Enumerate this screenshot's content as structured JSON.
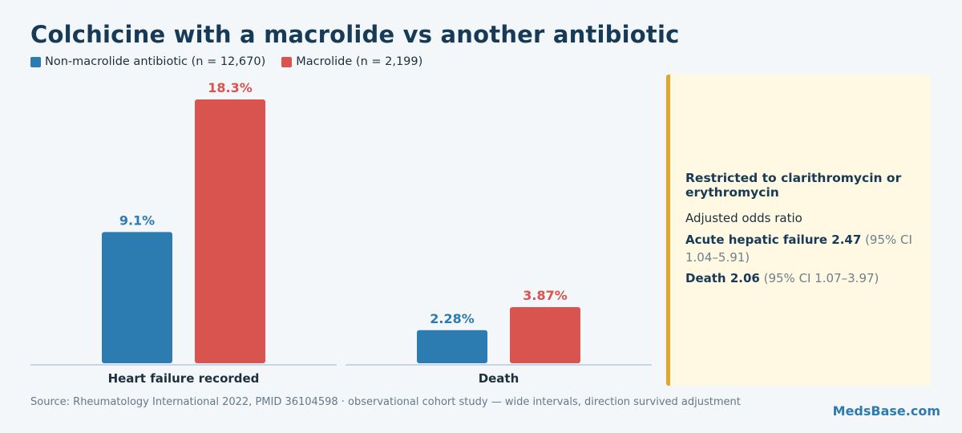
{
  "title": "Colchicine with a macrolide vs another antibiotic",
  "colors": {
    "series_0": "#2c7bb1",
    "series_1": "#d9534f",
    "accent": "#e4a52c"
  },
  "chart_data": {
    "type": "bar",
    "categories": [
      "Heart failure recorded",
      "Death"
    ],
    "series": [
      {
        "name": "Non-macrolide antibiotic (n = 12,670)",
        "values": [
          9.1,
          2.28
        ],
        "labels": [
          "9.1%",
          "2.28%"
        ]
      },
      {
        "name": "Macrolide (n = 2,199)",
        "values": [
          18.3,
          3.87
        ],
        "labels": [
          "18.3%",
          "3.87%"
        ]
      }
    ],
    "unit": "%",
    "panel_ylim": [
      [
        0,
        18.3
      ],
      [
        0,
        3.87
      ]
    ],
    "grid": false,
    "legend": "top-left"
  },
  "note": {
    "title": "Restricted to clarithromycin or erythromycin",
    "subtitle": "Adjusted odds ratio",
    "lines": [
      {
        "label": "Acute hepatic failure 2.47",
        "ci": "(95% CI 1.04–5.91)"
      },
      {
        "label": "Death 2.06",
        "ci": "(95% CI 1.07–3.97)"
      }
    ]
  },
  "source": "Source: Rheumatology International 2022, PMID 36104598 · observational cohort study — wide intervals, direction survived adjustment",
  "brand": "MedsBase.com"
}
